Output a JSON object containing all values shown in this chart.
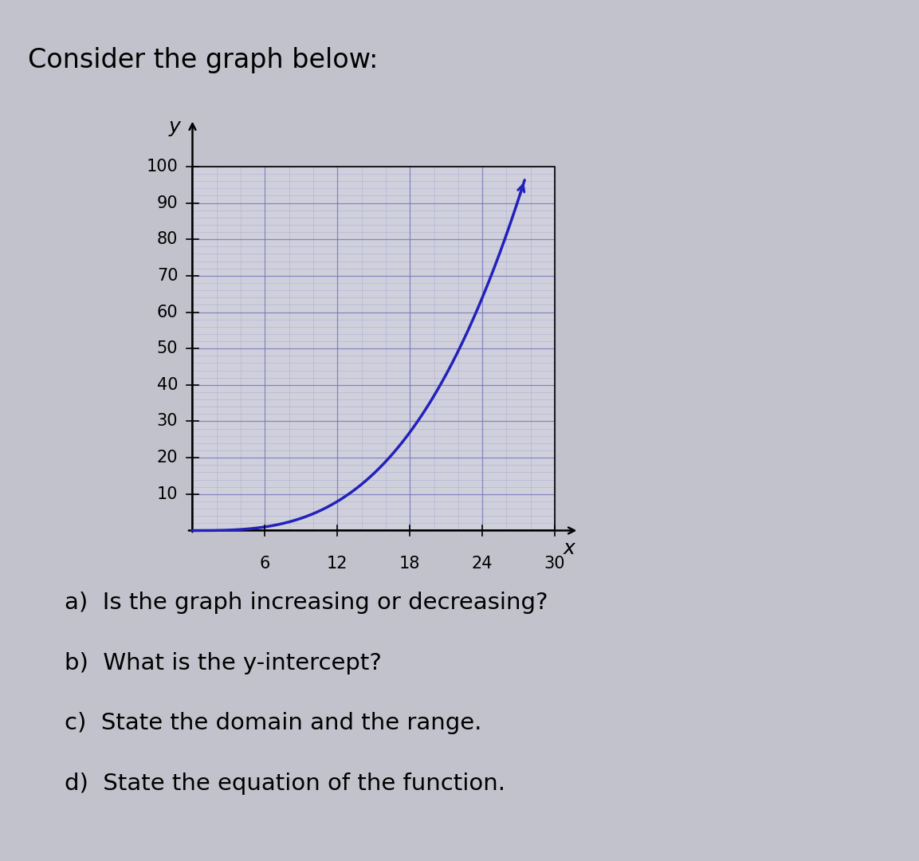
{
  "title": "Consider the graph below:",
  "title_fontsize": 24,
  "xlabel": "x",
  "ylabel": "y",
  "axis_label_fontsize": 18,
  "x_ticks": [
    6,
    12,
    18,
    24,
    30
  ],
  "y_ticks": [
    10,
    20,
    30,
    40,
    50,
    60,
    70,
    80,
    90,
    100
  ],
  "xlim": [
    -3,
    32
  ],
  "ylim": [
    -8,
    115
  ],
  "plot_xlim": [
    0,
    30
  ],
  "plot_ylim": [
    0,
    100
  ],
  "curve_color": "#2222bb",
  "curve_linewidth": 2.5,
  "minor_grid_color": "#9999cc",
  "major_grid_color": "#7777bb",
  "background_color": "#c2c2cc",
  "plot_bg_color": "#d0d0dd",
  "questions": [
    "a)  Is the graph increasing or decreasing?",
    "b)  What is the y-intercept?",
    "c)  State the domain and the range.",
    "d)  State the equation of the function."
  ],
  "questions_fontsize": 21,
  "tick_fontsize": 15,
  "power": 3,
  "scale": 0.00463,
  "curve_x_end": 26.0,
  "arrow_color": "#2222bb"
}
